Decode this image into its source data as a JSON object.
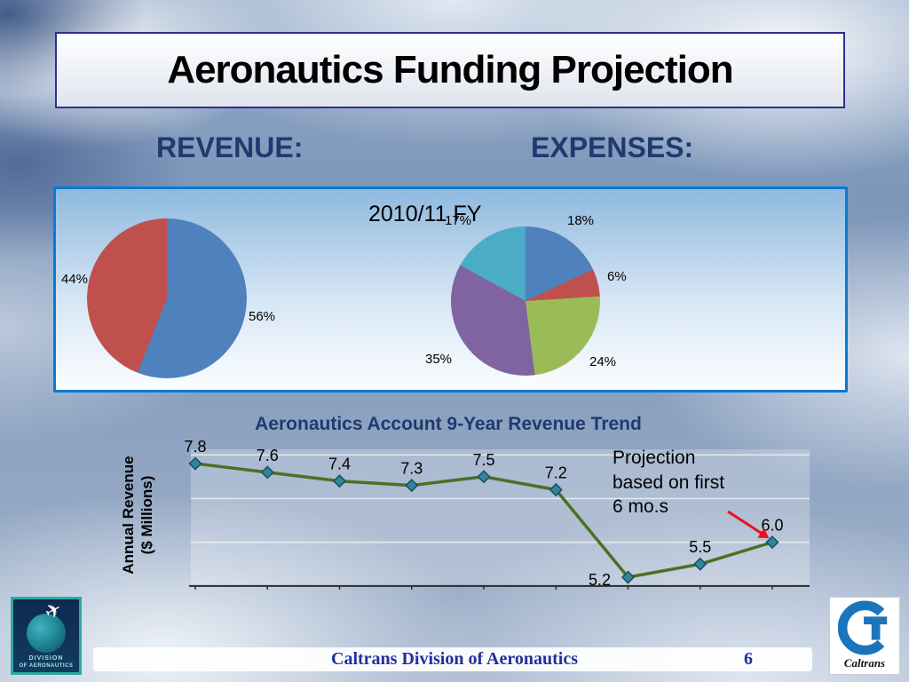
{
  "slide": {
    "title": "Aeronautics Funding Projection",
    "revenue_header": "REVENUE:",
    "expenses_header": "EXPENSES:",
    "fiscal_year_label": "2010/11 FY",
    "footer_text": "Caltrans Division of Aeronautics",
    "page_number": "6"
  },
  "colors": {
    "header_navy": "#1e3a6e",
    "panel_border_blue": "#0a7ad1",
    "title_box_border": "#2e2f8f",
    "footer_blue": "#232f9e",
    "arrow_red": "#e8121b"
  },
  "logos": {
    "aeronautics": {
      "line1": "DIVISION",
      "line2": "OF AERONAUTICS"
    },
    "caltrans": {
      "text": "Caltrans"
    }
  },
  "chart_data": [
    {
      "type": "pie",
      "name": "revenue_2010_11",
      "labels": [
        "56%",
        "44%"
      ],
      "values": [
        56,
        44
      ],
      "colors": [
        "#4f81bd",
        "#c0504d"
      ]
    },
    {
      "type": "pie",
      "name": "expenses_2010_11",
      "labels": [
        "18%",
        "6%",
        "24%",
        "35%",
        "17%"
      ],
      "values": [
        18,
        6,
        24,
        35,
        17
      ],
      "colors": [
        "#4f81bd",
        "#c0504d",
        "#9bbb59",
        "#8064a2",
        "#4bacc6"
      ]
    },
    {
      "type": "line",
      "title": "Aeronautics Account 9-Year Revenue Trend",
      "ylabel": "Annual Revenue ($ Millions)",
      "ylabel_lines": [
        "Annual Revenue",
        "($ Millions)"
      ],
      "values": [
        7.8,
        7.6,
        7.4,
        7.3,
        7.5,
        7.2,
        5.2,
        5.5,
        6.0
      ],
      "labels": [
        "7.8",
        "7.6",
        "7.4",
        "7.3",
        "7.5",
        "7.2",
        "5.2",
        "5.5",
        "6.0"
      ],
      "ylim": [
        5,
        8
      ],
      "gridlines": [
        5,
        6,
        7,
        8
      ],
      "line_color": "#4a7023",
      "marker_color": "#31859c",
      "annotation": "Projection based on first 6 mo.s"
    }
  ]
}
